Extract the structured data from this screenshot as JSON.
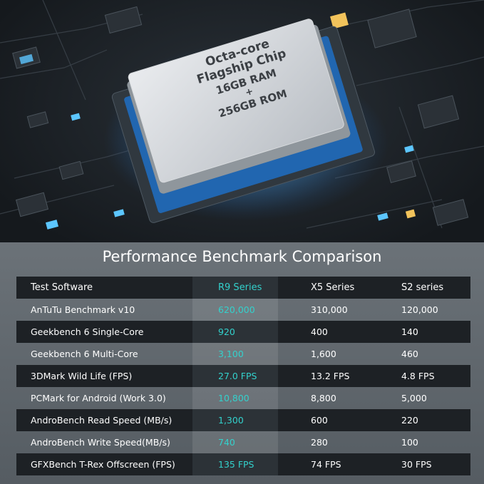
{
  "chip": {
    "line1": "Octa-core",
    "line2": "Flagship Chip",
    "line3": "16GB RAM",
    "line4": "+",
    "line5": "256GB ROM"
  },
  "benchmark": {
    "title": "Performance Benchmark Comparison",
    "accent_color": "#33d1cc",
    "headers": [
      "Test Software",
      "R9 Series",
      "X5 Series",
      "S2 series"
    ],
    "rows": [
      [
        "AnTuTu Benchmark v10",
        "620,000",
        "310,000",
        "120,000"
      ],
      [
        "Geekbench 6 Single-Core",
        "920",
        "400",
        "140"
      ],
      [
        "Geekbench 6 Multi-Core",
        "3,100",
        "1,600",
        "460"
      ],
      [
        "3DMark Wild Life (FPS)",
        "27.0 FPS",
        "13.2 FPS",
        "4.8 FPS"
      ],
      [
        "PCMark for Android (Work 3.0)",
        "10,800",
        "8,800",
        "5,000"
      ],
      [
        "AndroBench Read Speed (MB/s)",
        "1,300",
        "600",
        "220"
      ],
      [
        "AndroBench Write Speed(MB/s)",
        "740",
        "280",
        "100"
      ],
      [
        "GFXBench T-Rex Offscreen (FPS)",
        "135 FPS",
        "74 FPS",
        "30 FPS"
      ]
    ]
  }
}
